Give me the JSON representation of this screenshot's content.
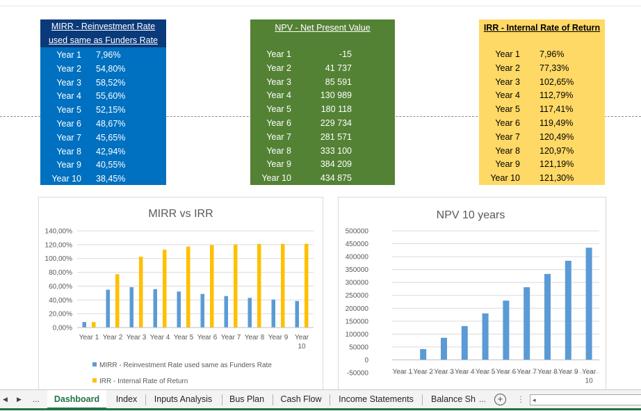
{
  "mirr_table": {
    "title_line1": "MIRR - Reinvestment Rate",
    "title_line2": "used same as Funders Rate",
    "rows": [
      {
        "label": "Year 1",
        "value": "7,96%"
      },
      {
        "label": "Year 2",
        "value": "54,80%"
      },
      {
        "label": "Year 3",
        "value": "58,52%"
      },
      {
        "label": "Year 4",
        "value": "55,60%"
      },
      {
        "label": "Year 5",
        "value": "52,15%"
      },
      {
        "label": "Year 6",
        "value": "48,67%"
      },
      {
        "label": "Year 7",
        "value": "45,65%"
      },
      {
        "label": "Year 8",
        "value": "42,94%"
      },
      {
        "label": "Year 9",
        "value": "40,55%"
      },
      {
        "label": "Year 10",
        "value": "38,45%"
      }
    ]
  },
  "npv_table": {
    "title": "NPV - Net Present Value",
    "rows": [
      {
        "label": "Year 1",
        "value": "-15"
      },
      {
        "label": "Year 2",
        "value": "41 737"
      },
      {
        "label": "Year 3",
        "value": "85 591"
      },
      {
        "label": "Year 4",
        "value": "130 989"
      },
      {
        "label": "Year 5",
        "value": "180 118"
      },
      {
        "label": "Year 6",
        "value": "229 734"
      },
      {
        "label": "Year 7",
        "value": "281 571"
      },
      {
        "label": "Year 8",
        "value": "333 100"
      },
      {
        "label": "Year 9",
        "value": "384 209"
      },
      {
        "label": "Year 10",
        "value": "434 875"
      }
    ]
  },
  "irr_table": {
    "title": "IRR - Internal Rate of Return",
    "rows": [
      {
        "label": "Year 1",
        "value": "7,96%"
      },
      {
        "label": "Year 2",
        "value": "77,33%"
      },
      {
        "label": "Year 3",
        "value": "102,65%"
      },
      {
        "label": "Year 4",
        "value": "112,79%"
      },
      {
        "label": "Year 5",
        "value": "117,41%"
      },
      {
        "label": "Year 6",
        "value": "119,49%"
      },
      {
        "label": "Year 7",
        "value": "120,49%"
      },
      {
        "label": "Year 8",
        "value": "120,97%"
      },
      {
        "label": "Year 9",
        "value": "121,19%"
      },
      {
        "label": "Year 10",
        "value": "121,30%"
      }
    ]
  },
  "chart_data": [
    {
      "type": "bar",
      "title": "MIRR vs IRR",
      "categories": [
        "Year 1",
        "Year 2",
        "Year 3",
        "Year 4",
        "Year 5",
        "Year 6",
        "Year 7",
        "Year 8",
        "Year 9",
        "Year 10"
      ],
      "ylim": [
        0,
        140
      ],
      "yticks": [
        "0,00%",
        "20,00%",
        "40,00%",
        "60,00%",
        "80,00%",
        "100,00%",
        "120,00%",
        "140,00%"
      ],
      "ytick_values": [
        0,
        20,
        40,
        60,
        80,
        100,
        120,
        140
      ],
      "grid": true,
      "legend_position": "bottom",
      "series": [
        {
          "name": "MIRR - Reinvestment Rate used same as Funders Rate",
          "color": "#5b9bd5",
          "values": [
            7.96,
            54.8,
            58.52,
            55.6,
            52.15,
            48.67,
            45.65,
            42.94,
            40.55,
            38.45
          ]
        },
        {
          "name": "IRR - Internal Rate of Return",
          "color": "#ffc000",
          "values": [
            7.96,
            77.33,
            102.65,
            112.79,
            117.41,
            119.49,
            120.49,
            120.97,
            121.19,
            121.3
          ]
        }
      ]
    },
    {
      "type": "bar",
      "title": "NPV 10 years",
      "categories": [
        "Year 1",
        "Year 2",
        "Year 3",
        "Year 4",
        "Year 5",
        "Year 6",
        "Year 7",
        "Year 8",
        "Year 9",
        "Year 10"
      ],
      "ylim": [
        -50000,
        500000
      ],
      "yticks": [
        "-50000",
        "0",
        "50000",
        "100000",
        "150000",
        "200000",
        "250000",
        "300000",
        "350000",
        "400000",
        "450000",
        "500000"
      ],
      "ytick_values": [
        -50000,
        0,
        50000,
        100000,
        150000,
        200000,
        250000,
        300000,
        350000,
        400000,
        450000,
        500000
      ],
      "grid": true,
      "series": [
        {
          "color": "#5b9bd5",
          "values": [
            -15,
            41737,
            85591,
            130989,
            180118,
            229734,
            281571,
            333100,
            384209,
            434875
          ]
        }
      ]
    }
  ],
  "sheet_tabs": {
    "nav_prev": "◀",
    "nav_next": "▶",
    "nav_more": "...",
    "tabs": [
      "Dashboard",
      "Index",
      "Inputs Analysis",
      "Bus Plan",
      "Cash Flow",
      "Income Statements",
      "Balance Sh"
    ],
    "active": "Dashboard",
    "overflow": "...",
    "add_label": "+",
    "options": "⋮"
  }
}
